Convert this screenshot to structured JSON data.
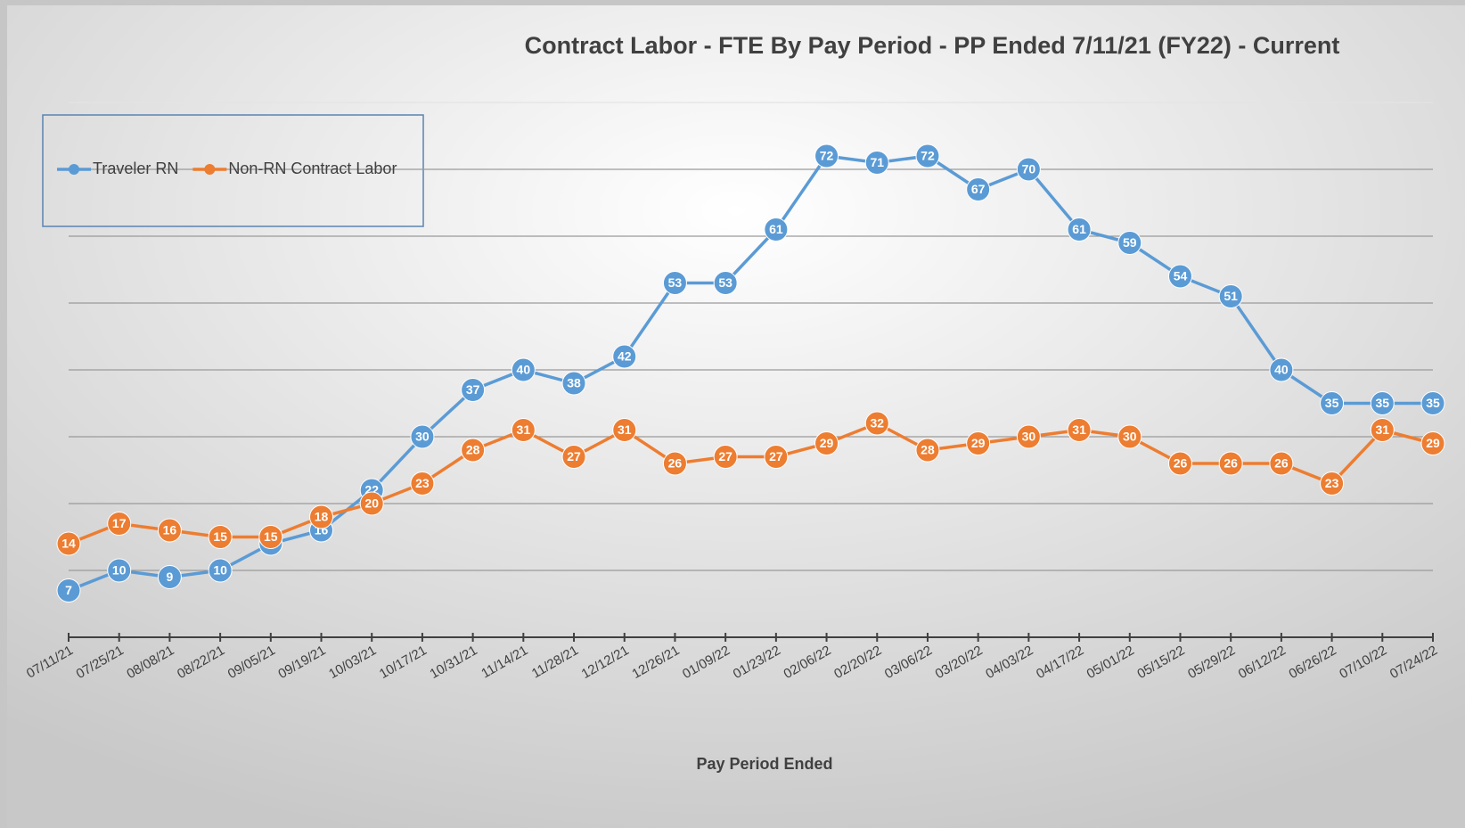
{
  "chart_data": {
    "type": "line",
    "title": "Contract Labor - FTE By Pay Period - PP Ended 7/11/21 (FY22) - Current",
    "x_label": "Pay Period Ended",
    "categories": [
      "07/11/21",
      "07/25/21",
      "08/08/21",
      "08/22/21",
      "09/05/21",
      "09/19/21",
      "10/03/21",
      "10/17/21",
      "10/31/21",
      "11/14/21",
      "11/28/21",
      "12/12/21",
      "12/26/21",
      "01/09/22",
      "01/23/22",
      "02/06/22",
      "02/20/22",
      "03/06/22",
      "03/20/22",
      "04/03/22",
      "04/17/22",
      "05/01/22",
      "05/15/22",
      "05/29/22",
      "06/12/22",
      "06/26/22",
      "07/10/22",
      "07/24/22"
    ],
    "series": [
      {
        "name": "Traveler RN",
        "color": "#5b9bd5",
        "values": [
          7,
          10,
          9,
          10,
          14,
          16,
          22,
          30,
          37,
          40,
          38,
          42,
          53,
          53,
          61,
          72,
          71,
          72,
          67,
          70,
          61,
          59,
          54,
          51,
          40,
          35,
          35,
          35
        ]
      },
      {
        "name": "Non-RN Contract Labor",
        "color": "#ed7d31",
        "values": [
          14,
          17,
          16,
          15,
          15,
          18,
          20,
          23,
          28,
          31,
          27,
          31,
          26,
          27,
          27,
          29,
          32,
          28,
          29,
          30,
          31,
          30,
          26,
          26,
          26,
          23,
          31,
          29
        ]
      }
    ],
    "ylim": [
      0,
      80
    ],
    "yticks": [
      0,
      10,
      20,
      30,
      40,
      50,
      60,
      70,
      80
    ],
    "grid": true,
    "legend": "top-left"
  }
}
